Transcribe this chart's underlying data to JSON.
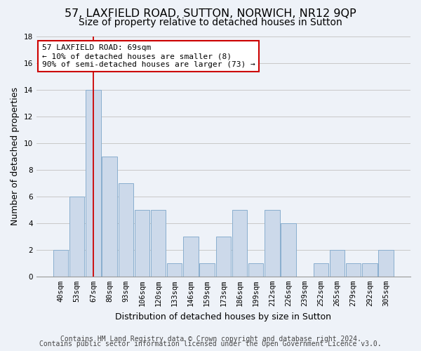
{
  "title": "57, LAXFIELD ROAD, SUTTON, NORWICH, NR12 9QP",
  "subtitle": "Size of property relative to detached houses in Sutton",
  "xlabel": "Distribution of detached houses by size in Sutton",
  "ylabel": "Number of detached properties",
  "footer_line1": "Contains HM Land Registry data © Crown copyright and database right 2024.",
  "footer_line2": "Contains public sector information licensed under the Open Government Licence v3.0.",
  "categories": [
    "40sqm",
    "53sqm",
    "67sqm",
    "80sqm",
    "93sqm",
    "106sqm",
    "120sqm",
    "133sqm",
    "146sqm",
    "159sqm",
    "173sqm",
    "186sqm",
    "199sqm",
    "212sqm",
    "226sqm",
    "239sqm",
    "252sqm",
    "265sqm",
    "279sqm",
    "292sqm",
    "305sqm"
  ],
  "values": [
    2,
    6,
    14,
    9,
    7,
    5,
    5,
    1,
    3,
    1,
    3,
    5,
    1,
    5,
    4,
    0,
    1,
    2,
    1,
    1,
    2
  ],
  "bar_color": "#ccd9ea",
  "bar_edge_color": "#89aece",
  "grid_color": "#c8c8c8",
  "background_color": "#eef2f8",
  "annotation_text": "57 LAXFIELD ROAD: 69sqm\n← 10% of detached houses are smaller (8)\n90% of semi-detached houses are larger (73) →",
  "annotation_box_color": "#ffffff",
  "annotation_box_edge": "#cc0000",
  "red_line_x": 2.0,
  "ylim": [
    0,
    18
  ],
  "yticks": [
    0,
    2,
    4,
    6,
    8,
    10,
    12,
    14,
    16,
    18
  ],
  "title_fontsize": 11.5,
  "subtitle_fontsize": 10,
  "axis_label_fontsize": 9,
  "tick_fontsize": 7.5,
  "annotation_fontsize": 8,
  "footer_fontsize": 7
}
